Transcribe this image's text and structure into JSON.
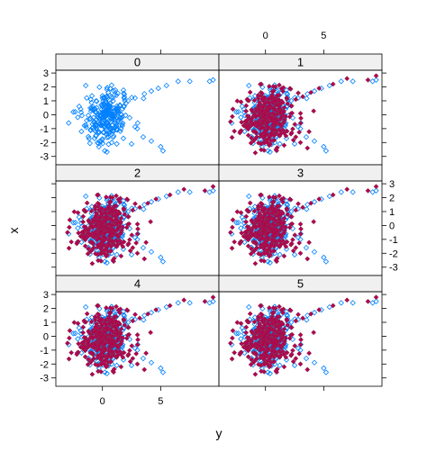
{
  "chart_data": {
    "type": "scatter",
    "layout": "lattice 2 columns x 3 rows, panels ordered 0,1 / 2,3 / 4,5",
    "xlabel": "y",
    "ylabel": "x",
    "xlim": [
      -4,
      10
    ],
    "ylim": [
      -3.6,
      3.2
    ],
    "xticks": [
      0,
      5
    ],
    "xtick_labels": [
      "0",
      "5"
    ],
    "yticks": [
      -3,
      -2,
      -1,
      0,
      1,
      2,
      3
    ],
    "ytick_labels": [
      "-3",
      "-2",
      "-1",
      "0",
      "1",
      "2",
      "3"
    ],
    "grid": false,
    "colors": {
      "original": "#0080ff",
      "imputed": "#b4004e",
      "strip": "#f0f0f0",
      "frame": "#000000"
    },
    "panels": [
      {
        "label": "0"
      },
      {
        "label": "1"
      },
      {
        "label": "2"
      },
      {
        "label": "3"
      },
      {
        "label": "4"
      },
      {
        "label": "5"
      }
    ],
    "series": [
      {
        "marker": "open diamond",
        "color": "#0080ff",
        "panels": [
          "0",
          "1",
          "2",
          "3",
          "4",
          "5"
        ],
        "cluster": {
          "x_center": 0.3,
          "y_center": -0.2,
          "x_spread": 1.3,
          "y_spread": 0.85
        },
        "points": [
          [
            6.5,
            2.4
          ],
          [
            7.5,
            2.4
          ],
          [
            9.2,
            2.4
          ],
          [
            9.5,
            2.5
          ],
          [
            5.5,
            2.1
          ],
          [
            4.8,
            1.9
          ],
          [
            4.2,
            1.7
          ],
          [
            3.6,
            1.5
          ],
          [
            2.8,
            1.2
          ],
          [
            2.2,
            1.0
          ],
          [
            1.5,
            0.7
          ],
          [
            3.0,
            -1.0
          ],
          [
            3.5,
            -1.6
          ],
          [
            4.2,
            -1.9
          ],
          [
            5.0,
            -2.3
          ],
          [
            5.2,
            -2.6
          ],
          [
            2.5,
            -2.1
          ],
          [
            1.8,
            -1.7
          ],
          [
            -2.9,
            -0.6
          ],
          [
            -2.5,
            0.2
          ],
          [
            -1.8,
            -1.2
          ],
          [
            -1.4,
            -0.9
          ],
          [
            -2.0,
            0.6
          ],
          [
            0.2,
            -2.6
          ],
          [
            -0.3,
            -2.3
          ],
          [
            0.8,
            -2.0
          ],
          [
            -1.0,
            1.1
          ],
          [
            0.5,
            1.6
          ],
          [
            1.2,
            1.4
          ],
          [
            0.0,
            1.2
          ]
        ]
      },
      {
        "marker": "filled diamond",
        "color": "#b4004e",
        "panels": [
          "1",
          "2",
          "3",
          "4",
          "5"
        ],
        "cluster": {
          "x_center": 0.2,
          "y_center": -0.1,
          "x_spread": 1.5,
          "y_spread": 0.9
        },
        "points": [
          [
            7.0,
            2.6
          ],
          [
            8.8,
            2.5
          ],
          [
            9.5,
            2.8
          ],
          [
            5.8,
            2.2
          ],
          [
            4.6,
            1.9
          ],
          [
            3.9,
            1.6
          ],
          [
            3.2,
            1.3
          ],
          [
            2.6,
            1.1
          ],
          [
            1.9,
            0.8
          ],
          [
            2.6,
            -1.6
          ],
          [
            3.0,
            -2.0
          ],
          [
            3.6,
            -2.4
          ],
          [
            -3.0,
            -0.5
          ],
          [
            -2.8,
            0.4
          ],
          [
            -2.2,
            -1.3
          ],
          [
            0.9,
            -2.5
          ],
          [
            -0.4,
            -2.1
          ],
          [
            1.6,
            -2.2
          ]
        ]
      }
    ]
  }
}
